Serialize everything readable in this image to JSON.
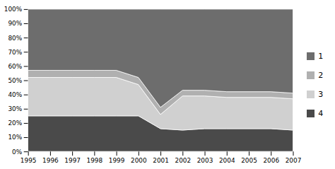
{
  "chart_data": {
    "type": "area",
    "stacked": true,
    "x": [
      1995,
      1996,
      1997,
      1998,
      1999,
      2000,
      2001,
      2002,
      2003,
      2004,
      2005,
      2006,
      2007
    ],
    "series": [
      {
        "name": "4",
        "color": "#4a4a4a",
        "values": [
          25,
          25,
          25,
          25,
          25,
          25,
          16,
          15,
          16,
          16,
          16,
          16,
          15
        ]
      },
      {
        "name": "3",
        "color": "#d0d0d0",
        "values": [
          27,
          27,
          27,
          27,
          27,
          22,
          10,
          24,
          23,
          22,
          22,
          22,
          22
        ]
      },
      {
        "name": "2",
        "color": "#b0b0b0",
        "values": [
          5,
          5,
          5,
          5,
          5,
          5,
          5,
          4,
          4,
          4,
          4,
          4,
          4
        ]
      },
      {
        "name": "1",
        "color": "#6d6d6d",
        "values": [
          43,
          43,
          43,
          43,
          43,
          48,
          69,
          57,
          57,
          58,
          58,
          58,
          59
        ]
      }
    ],
    "xlim": [
      1995,
      2007
    ],
    "xticks": [
      1995,
      1996,
      1997,
      1998,
      1999,
      2000,
      2001,
      2002,
      2003,
      2004,
      2005,
      2006,
      2007
    ],
    "ylim": [
      0,
      100
    ],
    "yticks": [
      {
        "value": 0,
        "label": "0%"
      },
      {
        "value": 10,
        "label": "10%"
      },
      {
        "value": 20,
        "label": "20%"
      },
      {
        "value": 30,
        "label": "30%"
      },
      {
        "value": 40,
        "label": "40%"
      },
      {
        "value": 50,
        "label": "50%"
      },
      {
        "value": 60,
        "label": "60%"
      },
      {
        "value": 70,
        "label": "70%"
      },
      {
        "value": 80,
        "label": "80%"
      },
      {
        "value": 90,
        "label": "90%"
      },
      {
        "value": 100,
        "label": "100%"
      }
    ],
    "grid": false,
    "legend": "right"
  }
}
